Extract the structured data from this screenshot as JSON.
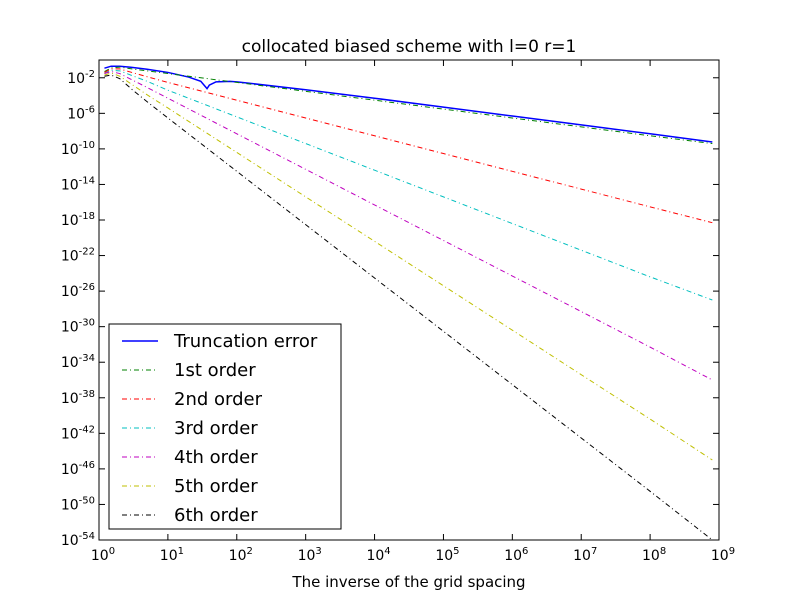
{
  "chart_data": {
    "type": "line",
    "title": "collocated biased scheme with l=0 r=1",
    "xlabel": "The inverse of the grid spacing",
    "ylabel": "",
    "xscale": "log",
    "yscale": "log",
    "xlim": [
      1,
      1000000000
    ],
    "ylim": [
      1e-54,
      1
    ],
    "x_ticks": [
      {
        "base": "10",
        "exp": "0"
      },
      {
        "base": "10",
        "exp": "1"
      },
      {
        "base": "10",
        "exp": "2"
      },
      {
        "base": "10",
        "exp": "3"
      },
      {
        "base": "10",
        "exp": "4"
      },
      {
        "base": "10",
        "exp": "5"
      },
      {
        "base": "10",
        "exp": "6"
      },
      {
        "base": "10",
        "exp": "7"
      },
      {
        "base": "10",
        "exp": "8"
      },
      {
        "base": "10",
        "exp": "9"
      }
    ],
    "y_ticks": [
      {
        "base": "10",
        "exp": "-2"
      },
      {
        "base": "10",
        "exp": "-6"
      },
      {
        "base": "10",
        "exp": "-10"
      },
      {
        "base": "10",
        "exp": "-14"
      },
      {
        "base": "10",
        "exp": "-18"
      },
      {
        "base": "10",
        "exp": "-22"
      },
      {
        "base": "10",
        "exp": "-26"
      },
      {
        "base": "10",
        "exp": "-30"
      },
      {
        "base": "10",
        "exp": "-34"
      },
      {
        "base": "10",
        "exp": "-38"
      },
      {
        "base": "10",
        "exp": "-42"
      },
      {
        "base": "10",
        "exp": "-46"
      },
      {
        "base": "10",
        "exp": "-50"
      },
      {
        "base": "10",
        "exp": "-54"
      }
    ],
    "legend_position": "lower-left",
    "grid": false,
    "series": [
      {
        "name": "Truncation error",
        "color": "#0000ff",
        "style": "solid",
        "x": [
          1.2,
          1.5,
          2,
          3,
          5,
          10,
          20,
          30,
          37,
          40,
          50,
          80,
          100,
          1000,
          10000,
          100000,
          1000000,
          10000000,
          100000000,
          800000000
        ],
        "y": [
          0.12,
          0.2,
          0.2,
          0.15,
          0.09,
          0.04,
          0.012,
          0.004,
          0.0006,
          0.0015,
          0.0035,
          0.004,
          0.0035,
          0.00045,
          5e-05,
          5e-06,
          5e-07,
          5e-08,
          5e-09,
          6e-10
        ]
      },
      {
        "name": "1st order",
        "color": "#008000",
        "style": "dashdot",
        "x": [
          1.2,
          1.5,
          2,
          3,
          5,
          10,
          100,
          1000,
          10000,
          100000,
          1000000,
          10000000,
          100000000,
          800000000
        ],
        "y": [
          0.05,
          0.13,
          0.16,
          0.1,
          0.06,
          0.03,
          0.003,
          0.0003,
          3e-05,
          3e-06,
          3e-07,
          3e-08,
          3e-09,
          4e-10
        ]
      },
      {
        "name": "2nd order",
        "color": "#ff0000",
        "style": "dashdot",
        "x": [
          1.2,
          1.5,
          2,
          3,
          5,
          10,
          100,
          1000,
          10000,
          100000,
          1000000,
          10000000,
          100000000,
          800000000
        ],
        "y": [
          0.04,
          0.1,
          0.1,
          0.04,
          0.013,
          0.003,
          3e-05,
          3e-07,
          3e-09,
          3e-11,
          3e-13,
          3e-15,
          3e-17,
          5e-19
        ]
      },
      {
        "name": "3rd order",
        "color": "#00bfbf",
        "style": "dashdot",
        "x": [
          1.2,
          1.5,
          2,
          3,
          5,
          10,
          100,
          1000,
          10000,
          100000,
          1000000,
          10000000,
          100000000,
          800000000
        ],
        "y": [
          0.03,
          0.07,
          0.06,
          0.018,
          0.004,
          0.0004,
          4e-07,
          4e-10,
          4e-13,
          4e-16,
          4e-19,
          4e-22,
          4e-25,
          1e-27
        ]
      },
      {
        "name": "4th order",
        "color": "#bf00bf",
        "style": "dashdot",
        "x": [
          1.2,
          1.5,
          2,
          3,
          5,
          10,
          100,
          1000,
          10000,
          100000,
          1000000,
          10000000,
          100000000,
          800000000
        ],
        "y": [
          0.03,
          0.05,
          0.03,
          0.006,
          0.0008,
          5e-05,
          5e-09,
          5e-13,
          5e-17,
          5e-21,
          5e-25,
          5e-29,
          5e-33,
          1e-36
        ]
      },
      {
        "name": "5th order",
        "color": "#bfbf00",
        "style": "dashdot",
        "x": [
          1.2,
          1.5,
          2,
          3,
          5,
          10,
          100,
          1000,
          10000,
          100000,
          1000000,
          10000000,
          100000000,
          800000000
        ],
        "y": [
          0.02,
          0.035,
          0.015,
          0.0018,
          0.00012,
          4e-06,
          4e-11,
          4e-16,
          4e-21,
          4e-26,
          4e-31,
          4e-36,
          4e-41,
          1e-45
        ]
      },
      {
        "name": "6th order",
        "color": "#000000",
        "style": "dashdot",
        "x": [
          1.2,
          1.5,
          2,
          3,
          5,
          10,
          100,
          1000,
          10000,
          100000,
          1000000,
          10000000,
          100000000,
          800000000
        ],
        "y": [
          0.015,
          0.02,
          0.008,
          0.0005,
          2e-05,
          3e-07,
          3e-13,
          3e-19,
          3e-25,
          3e-31,
          3e-37,
          3e-43,
          3e-49,
          1e-54
        ]
      }
    ]
  }
}
